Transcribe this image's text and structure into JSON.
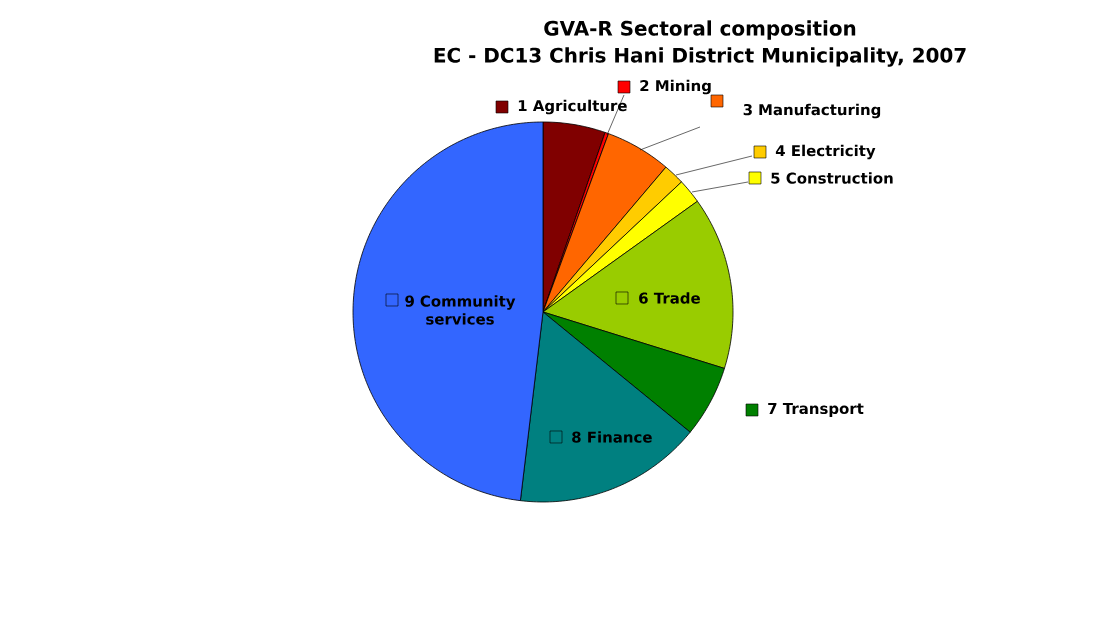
{
  "chart_data": {
    "type": "pie",
    "legend": "right",
    "title": "GVA-R Sectoral composition",
    "subtitle": "EC - DC13 Chris Hani District Municipality, 2007",
    "categories": [
      "1 Agriculture",
      "2 Mining",
      "3 Manufacturing",
      "4 Electricity",
      "5 Construction",
      "6 Trade",
      "7 Transport",
      "8 Finance",
      "9 Community services"
    ],
    "values": [
      5.3,
      0.3,
      5.6,
      1.8,
      2.1,
      14.7,
      6.1,
      16.0,
      48.1
    ],
    "colors": [
      "#800000",
      "#ff0000",
      "#ff6600",
      "#ffcc00",
      "#ffff00",
      "#99cc00",
      "#008000",
      "#008080",
      "#3366ff"
    ]
  }
}
